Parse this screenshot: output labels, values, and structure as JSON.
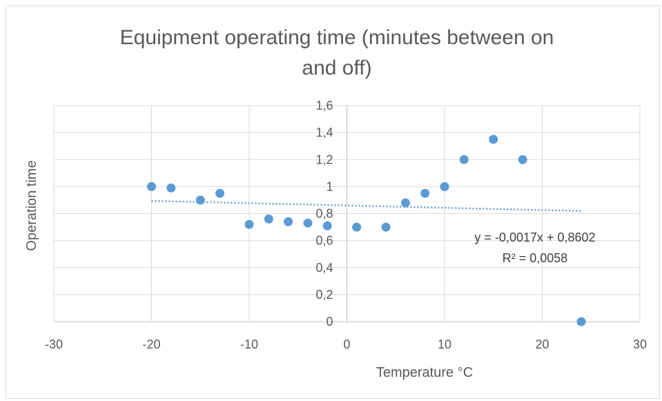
{
  "chart_data": {
    "type": "scatter",
    "title_line1": "Equipment operating time (minutes between on",
    "title_line2": "and off)",
    "xlabel": "Temperature °C",
    "ylabel": "Operation time",
    "xlim": [
      -30,
      30
    ],
    "ylim": [
      0,
      1.6
    ],
    "xticks": [
      -30,
      -20,
      -10,
      0,
      10,
      20,
      30
    ],
    "yticks": [
      0,
      0.2,
      0.4,
      0.6,
      0.8,
      1,
      1.2,
      1.4,
      1.6
    ],
    "xtick_labels": [
      "-30",
      "-20",
      "-10",
      "0",
      "10",
      "20",
      "30"
    ],
    "ytick_labels": [
      "0",
      "0,2",
      "0,4",
      "0,6",
      "0,8",
      "1",
      "1,2",
      "1,4",
      "1,6"
    ],
    "grid": true,
    "marker_color": "#5b9bd5",
    "points": [
      {
        "x": -20,
        "y": 1.0
      },
      {
        "x": -18,
        "y": 0.99
      },
      {
        "x": -15,
        "y": 0.9
      },
      {
        "x": -13,
        "y": 0.95
      },
      {
        "x": -10,
        "y": 0.72
      },
      {
        "x": -8,
        "y": 0.76
      },
      {
        "x": -6,
        "y": 0.74
      },
      {
        "x": -4,
        "y": 0.73
      },
      {
        "x": -2,
        "y": 0.71
      },
      {
        "x": 1,
        "y": 0.7
      },
      {
        "x": 4,
        "y": 0.7
      },
      {
        "x": 6,
        "y": 0.88
      },
      {
        "x": 8,
        "y": 0.95
      },
      {
        "x": 10,
        "y": 1.0
      },
      {
        "x": 12,
        "y": 1.2
      },
      {
        "x": 15,
        "y": 1.35
      },
      {
        "x": 18,
        "y": 1.2
      },
      {
        "x": 24,
        "y": 0.0
      }
    ],
    "trendline": {
      "type": "linear",
      "slope": -0.0017,
      "intercept": 0.8602,
      "x_range": [
        -20,
        24
      ],
      "equation": "y = -0,0017x + 0,8602",
      "r_squared": "R² = 0,0058"
    }
  }
}
